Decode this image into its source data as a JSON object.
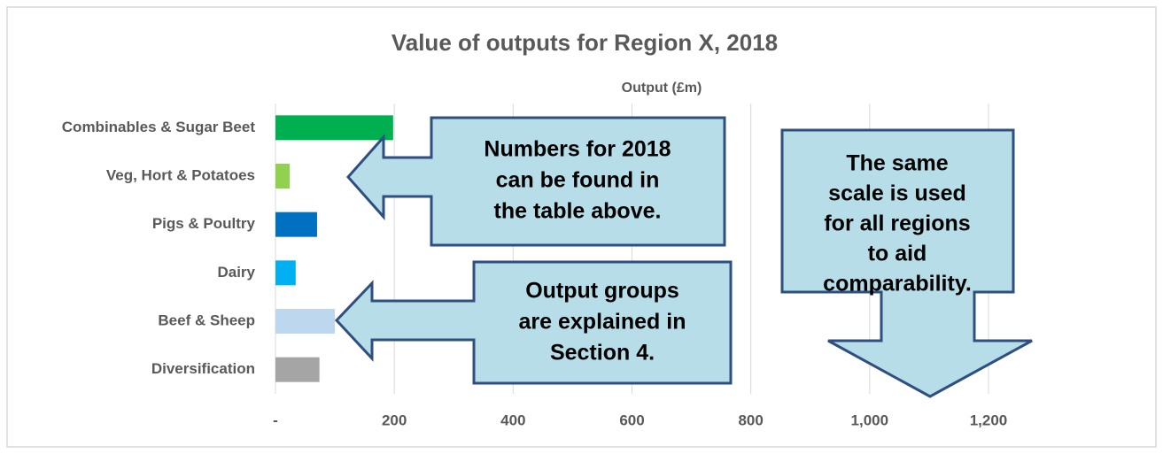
{
  "chart_data": {
    "type": "barh",
    "title": "Value of outputs for Region X, 2018",
    "x_label": "Output (£m)",
    "categories": [
      "Combinables & Sugar Beet",
      "Veg, Hort & Potatoes",
      "Pigs & Poultry",
      "Dairy",
      "Beef & Sheep",
      "Diversification"
    ],
    "values": [
      198,
      24,
      70,
      34,
      100,
      74
    ],
    "colors": [
      "#00b050",
      "#92d050",
      "#0070c0",
      "#00b0f0",
      "#bdd7ee",
      "#a5a5a5"
    ],
    "xlim": [
      0,
      1200
    ],
    "xticks": [
      {
        "value": 0,
        "label": "-"
      },
      200,
      400,
      600,
      800,
      {
        "value": 1000,
        "label": "1,000"
      },
      {
        "value": 1200,
        "label": "1,200"
      }
    ],
    "grid": true,
    "annotations": [
      [
        "Numbers for 2018",
        "can be found in",
        "the table above."
      ],
      [
        "Output groups",
        "are explained in",
        "Section 4."
      ],
      [
        "The same",
        "scale is used",
        "for all regions",
        "to aid",
        "comparability."
      ]
    ]
  }
}
